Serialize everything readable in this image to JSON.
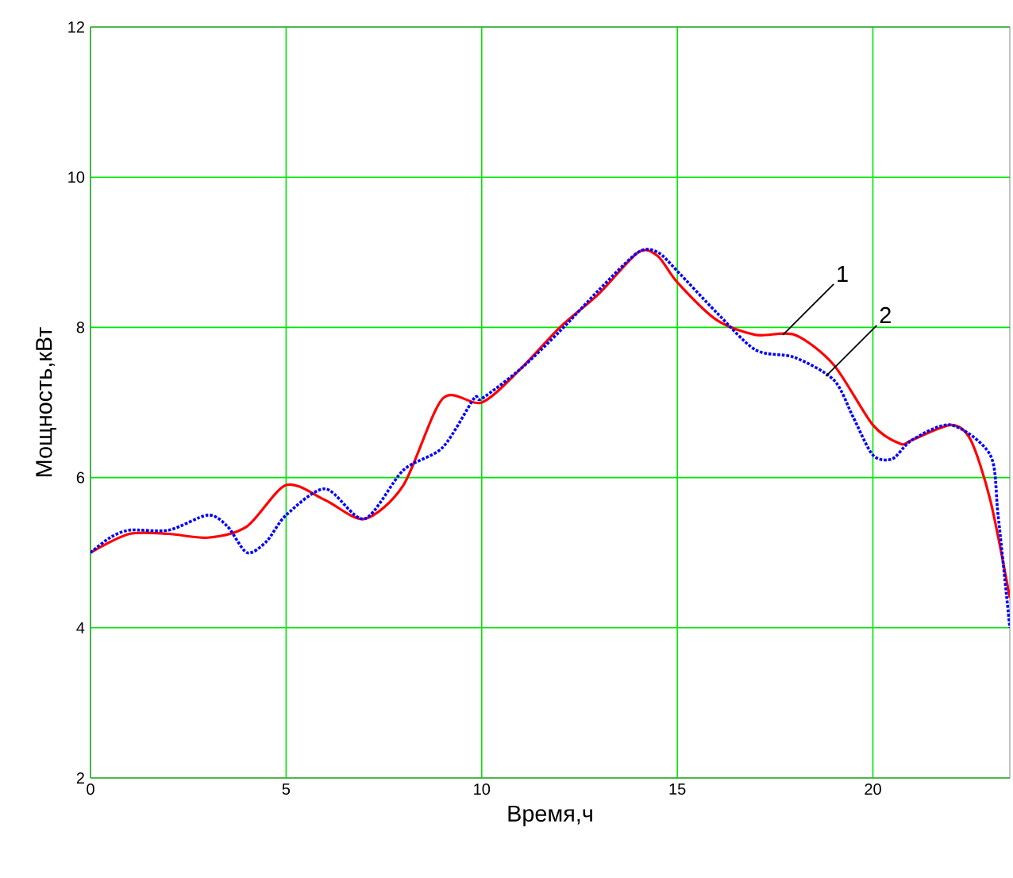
{
  "chart_data": {
    "type": "line",
    "xlabel": "Время,ч",
    "ylabel": "Мощность,кВт",
    "xlim": [
      0,
      23.5
    ],
    "ylim": [
      2,
      12
    ],
    "xticks": [
      0,
      5,
      10,
      15,
      20
    ],
    "yticks": [
      2,
      4,
      6,
      8,
      10,
      12
    ],
    "grid": true,
    "marker": "none",
    "series": [
      {
        "color": "#ff0000",
        "line_style": "solid",
        "x": [
          0,
          1,
          2,
          3,
          4,
          5,
          6,
          7,
          8,
          9,
          10,
          11,
          12,
          13,
          14,
          14.5,
          15,
          16,
          17,
          18,
          19,
          20,
          20.7,
          21,
          22,
          22.5,
          23,
          23.5
        ],
        "values": [
          5.0,
          5.25,
          5.25,
          5.2,
          5.35,
          5.9,
          5.7,
          5.45,
          5.9,
          7.05,
          7.0,
          7.45,
          8.0,
          8.45,
          9.0,
          8.95,
          8.6,
          8.1,
          7.9,
          7.9,
          7.5,
          6.7,
          6.45,
          6.5,
          6.7,
          6.5,
          5.7,
          4.4
        ]
      },
      {
        "color": "#0000ff",
        "line_style": "dotted",
        "x": [
          0,
          0.5,
          1,
          2,
          3,
          3.5,
          4,
          4.5,
          5,
          6,
          7,
          8,
          9,
          9.8,
          10,
          11,
          12,
          13,
          14,
          14.5,
          15,
          16,
          17,
          18,
          19,
          19.5,
          20,
          20.5,
          21,
          22,
          23,
          23.2,
          23.5
        ],
        "values": [
          5.0,
          5.2,
          5.3,
          5.3,
          5.5,
          5.35,
          5.0,
          5.15,
          5.5,
          5.85,
          5.45,
          6.1,
          6.4,
          7.05,
          7.05,
          7.45,
          7.95,
          8.5,
          9.0,
          9.0,
          8.75,
          8.2,
          7.7,
          7.6,
          7.3,
          6.8,
          6.3,
          6.25,
          6.5,
          6.7,
          6.3,
          5.5,
          4.0
        ]
      }
    ],
    "annotations": [
      {
        "text": "1",
        "x": 17.7,
        "y": 7.9
      },
      {
        "text": "2",
        "x": 18.8,
        "y": 7.35
      }
    ]
  }
}
